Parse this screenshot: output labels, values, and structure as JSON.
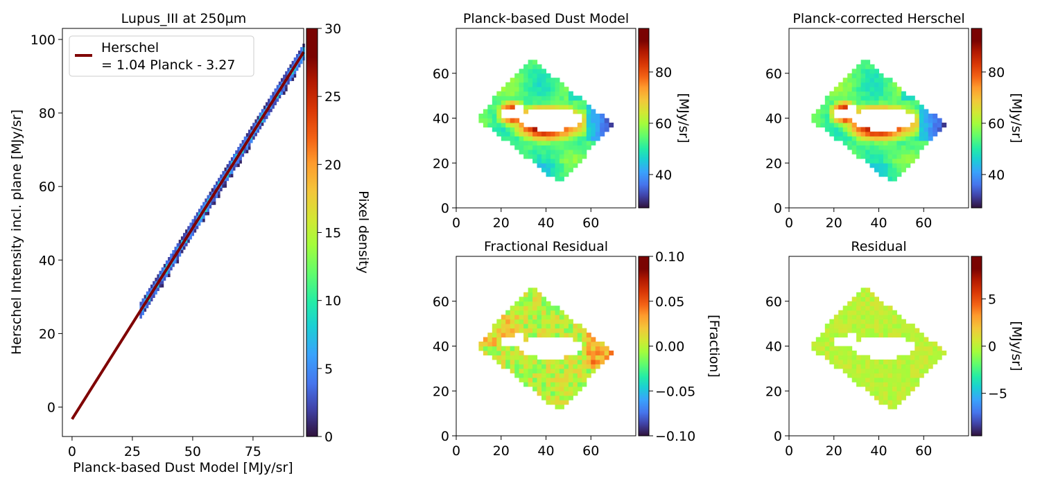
{
  "chart_data": [
    {
      "type": "scatter",
      "subtype": "2d-density-histogram",
      "title": "Lupus_III at 250µm",
      "xlabel": "Planck-based Dust Model [MJy/sr]",
      "ylabel": "Herschel Intensity incl. plane [MJy/sr]",
      "xlim": [
        -4,
        96
      ],
      "ylim": [
        -8,
        103
      ],
      "xticks": [
        "0",
        "25",
        "50",
        "75"
      ],
      "yticks": [
        "0",
        "20",
        "40",
        "60",
        "80",
        "100"
      ],
      "fit": {
        "name_line1": "Herschel",
        "name_line2": "= 1.04 Planck - 3.27",
        "slope": 1.04,
        "intercept": -3.27,
        "color": "#7f0000"
      },
      "density_band": {
        "x_start": 28,
        "x_end": 96,
        "max_density": 30
      },
      "colorbar": {
        "label": "Pixel density",
        "min": 0,
        "max": 30,
        "ticks": [
          "0",
          "5",
          "10",
          "15",
          "20",
          "25",
          "30"
        ],
        "colormap": "turbo"
      },
      "legend_position": "top-left",
      "grid": false
    },
    {
      "type": "heatmap",
      "title": "Planck-based Dust Model",
      "xticks": [
        "0",
        "20",
        "40",
        "60"
      ],
      "yticks": [
        "0",
        "20",
        "40",
        "60"
      ],
      "extent": [
        0,
        80
      ],
      "colorbar": {
        "label": "[MJy/sr]",
        "min": 27,
        "max": 97,
        "ticks": [
          "40",
          "60",
          "80"
        ],
        "colormap": "turbo"
      }
    },
    {
      "type": "heatmap",
      "title": "Planck-corrected Herschel",
      "xticks": [
        "0",
        "20",
        "40",
        "60"
      ],
      "yticks": [
        "0",
        "20",
        "40",
        "60"
      ],
      "extent": [
        0,
        80
      ],
      "colorbar": {
        "label": "[MJy/sr]",
        "min": 27,
        "max": 97,
        "ticks": [
          "40",
          "60",
          "80"
        ],
        "colormap": "turbo"
      }
    },
    {
      "type": "heatmap",
      "title": "Fractional Residual",
      "xticks": [
        "0",
        "20",
        "40",
        "60"
      ],
      "yticks": [
        "0",
        "20",
        "40",
        "60"
      ],
      "extent": [
        0,
        80
      ],
      "colorbar": {
        "label": "[Fraction]",
        "min": -0.1,
        "max": 0.1,
        "ticks": [
          "0.10",
          "0.05",
          "0.00",
          "−0.05",
          "−0.10"
        ],
        "colormap": "turbo"
      }
    },
    {
      "type": "heatmap",
      "title": "Residual",
      "xticks": [
        "0",
        "20",
        "40",
        "60"
      ],
      "yticks": [
        "0",
        "20",
        "40",
        "60"
      ],
      "extent": [
        0,
        80
      ],
      "colorbar": {
        "label": "[MJy/sr]",
        "min": -9.5,
        "max": 9.5,
        "ticks": [
          "5",
          "0",
          "−5"
        ],
        "colormap": "turbo"
      }
    }
  ]
}
